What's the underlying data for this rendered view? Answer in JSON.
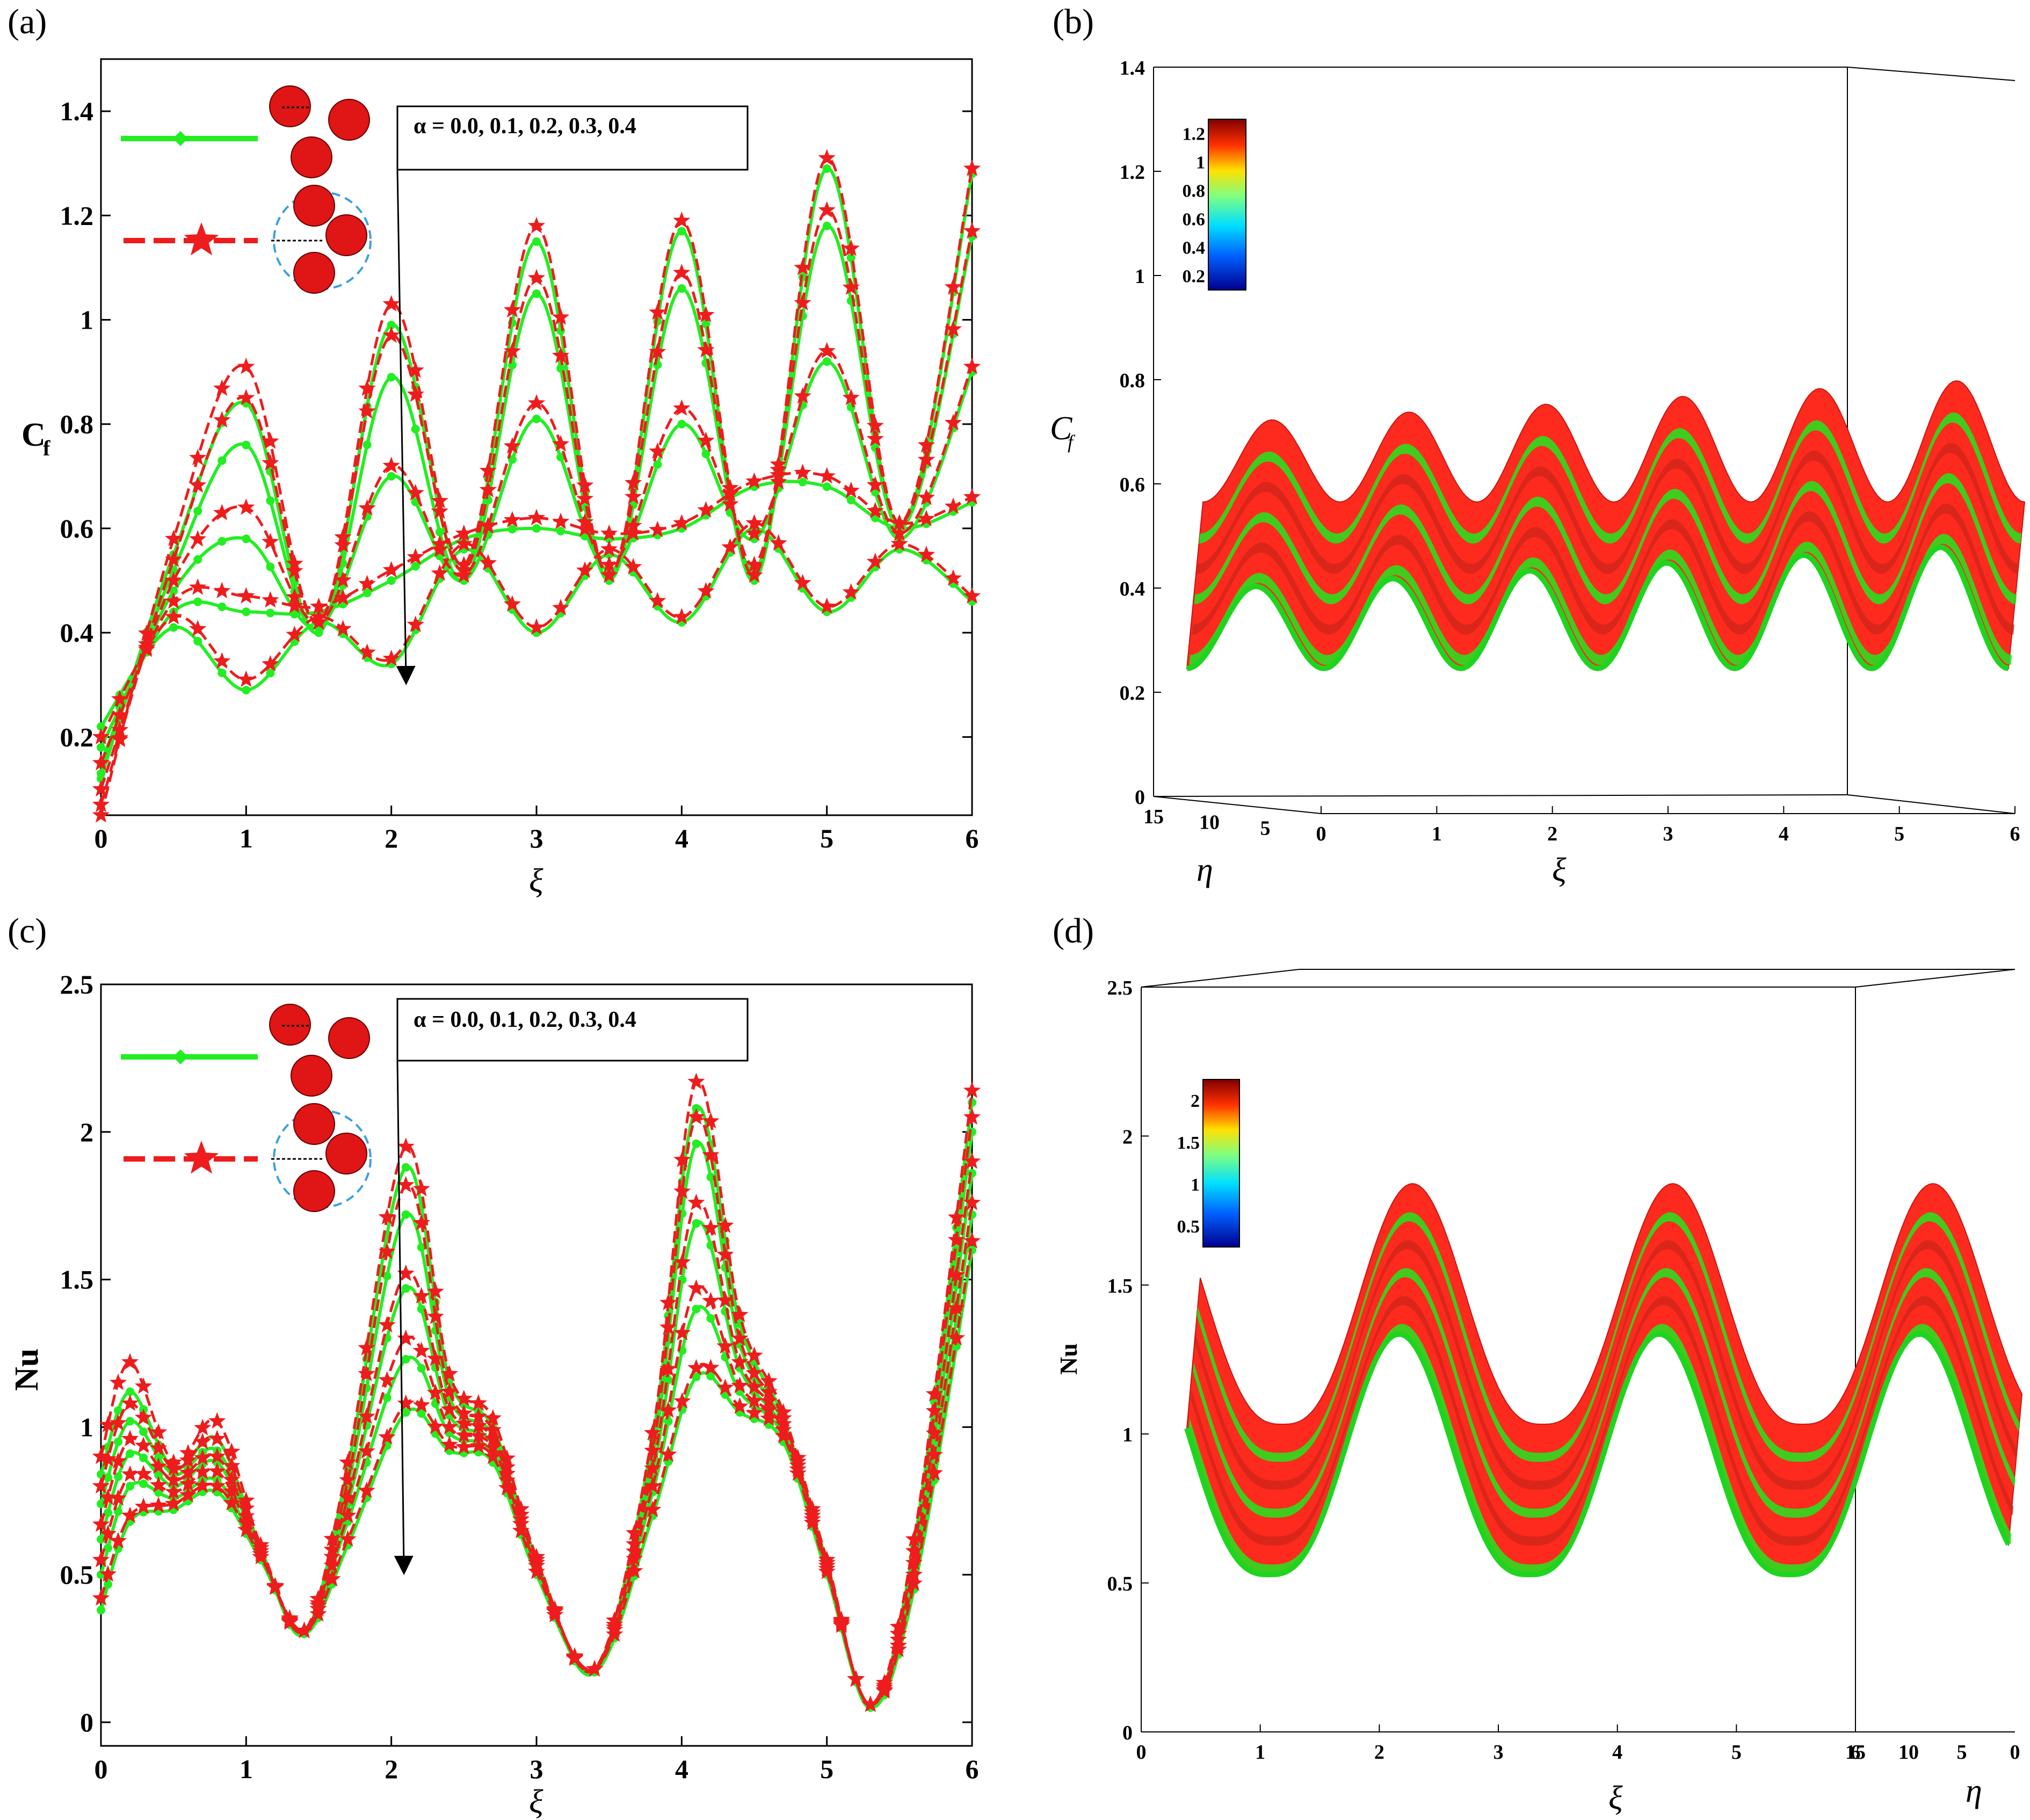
{
  "panels": [
    {
      "id": "a",
      "tag": "(a)",
      "ylabel": "C",
      "ylabel_sub": "f",
      "xlabel": "ξ",
      "annotation": "α = 0.0, 0.1, 0.2, 0.3, 0.4"
    },
    {
      "id": "b",
      "tag": "(b)",
      "ylabel": "C",
      "ylabel_sub": "f",
      "xlabel": "ξ",
      "depthlabel": "η",
      "colorbar": {
        "ticks": [
          "1.2",
          "1",
          "0.8",
          "0.6",
          "0.4",
          "0.2"
        ]
      }
    },
    {
      "id": "c",
      "tag": "(c)",
      "ylabel": "Nu",
      "xlabel": "ξ",
      "annotation": "α = 0.0, 0.1, 0.2, 0.3, 0.4"
    },
    {
      "id": "d",
      "tag": "(d)",
      "ylabel": "Nu",
      "xlabel": "ξ",
      "depthlabel": "η",
      "colorbar": {
        "ticks": [
          "2",
          "1.5",
          "1",
          "0.5"
        ]
      }
    }
  ],
  "colors": {
    "series_green": "#22ee22",
    "series_red": "#ee1c1c",
    "particle": "#e01515",
    "circle_outline": "#3aa0e0"
  },
  "chart_data": [
    {
      "type": "line",
      "panel": "a",
      "xlabel": "ξ",
      "ylabel": "Cf",
      "xlim": [
        0,
        6
      ],
      "ylim": [
        0.05,
        1.5
      ],
      "xticks": [
        0,
        1,
        2,
        3,
        4,
        5,
        6
      ],
      "yticks": [
        0.2,
        0.4,
        0.6,
        0.8,
        1,
        1.2,
        1.4
      ],
      "x": [
        0,
        0.5,
        1,
        1.5,
        2,
        2.5,
        3,
        3.5,
        4,
        4.5,
        5,
        5.5,
        6
      ],
      "series": [
        {
          "group": "green",
          "alpha": 0.0,
          "values": [
            0.12,
            0.55,
            0.84,
            0.4,
            0.99,
            0.52,
            1.15,
            0.5,
            1.17,
            0.5,
            1.29,
            0.6,
            1.28
          ]
        },
        {
          "group": "green",
          "alpha": 0.1,
          "values": [
            0.13,
            0.52,
            0.76,
            0.4,
            0.89,
            0.5,
            1.05,
            0.5,
            1.06,
            0.52,
            1.18,
            0.6,
            1.16
          ]
        },
        {
          "group": "green",
          "alpha": 0.2,
          "values": [
            0.15,
            0.48,
            0.58,
            0.41,
            0.7,
            0.5,
            0.81,
            0.52,
            0.8,
            0.58,
            0.92,
            0.58,
            0.9
          ]
        },
        {
          "group": "green",
          "alpha": 0.3,
          "values": [
            0.18,
            0.44,
            0.44,
            0.44,
            0.5,
            0.58,
            0.6,
            0.58,
            0.6,
            0.68,
            0.68,
            0.6,
            0.65
          ]
        },
        {
          "group": "green",
          "alpha": 0.4,
          "values": [
            0.22,
            0.41,
            0.29,
            0.42,
            0.34,
            0.56,
            0.4,
            0.55,
            0.42,
            0.6,
            0.44,
            0.56,
            0.46
          ]
        },
        {
          "group": "red",
          "alpha": 0.0,
          "values": [
            0.05,
            0.58,
            0.91,
            0.42,
            1.03,
            0.53,
            1.18,
            0.51,
            1.19,
            0.51,
            1.31,
            0.61,
            1.29
          ]
        },
        {
          "group": "red",
          "alpha": 0.1,
          "values": [
            0.07,
            0.54,
            0.85,
            0.42,
            0.97,
            0.52,
            1.08,
            0.51,
            1.09,
            0.53,
            1.21,
            0.61,
            1.17
          ]
        },
        {
          "group": "red",
          "alpha": 0.2,
          "values": [
            0.1,
            0.5,
            0.64,
            0.42,
            0.72,
            0.51,
            0.84,
            0.53,
            0.83,
            0.59,
            0.94,
            0.59,
            0.91
          ]
        },
        {
          "group": "red",
          "alpha": 0.3,
          "values": [
            0.15,
            0.46,
            0.47,
            0.45,
            0.52,
            0.59,
            0.62,
            0.59,
            0.61,
            0.69,
            0.7,
            0.61,
            0.66
          ]
        },
        {
          "group": "red",
          "alpha": 0.4,
          "values": [
            0.2,
            0.43,
            0.31,
            0.43,
            0.35,
            0.57,
            0.41,
            0.56,
            0.43,
            0.61,
            0.45,
            0.57,
            0.47
          ]
        }
      ]
    },
    {
      "type": "surface",
      "panel": "b",
      "xlabel": "ξ",
      "ylabel": "Cf",
      "zlabel": "η",
      "xlim": [
        0,
        6
      ],
      "ylim": [
        0,
        1.4
      ],
      "zlim": [
        0,
        15
      ],
      "xticks": [
        0,
        1,
        2,
        3,
        4,
        5,
        6
      ],
      "yticks": [
        0,
        0.2,
        0.4,
        0.6,
        0.8,
        1,
        1.2,
        1.4
      ],
      "zticks": [
        0,
        5,
        10,
        15
      ]
    },
    {
      "type": "line",
      "panel": "c",
      "xlabel": "ξ",
      "ylabel": "Nu",
      "xlim": [
        0,
        6
      ],
      "ylim": [
        -0.08,
        2.5
      ],
      "xticks": [
        0,
        1,
        2,
        3,
        4,
        5,
        6
      ],
      "yticks": [
        0,
        0.5,
        1,
        1.5,
        2,
        2.5
      ],
      "x": [
        0,
        0.2,
        0.5,
        0.8,
        1.1,
        1.4,
        1.7,
        2.1,
        2.4,
        2.7,
        3.0,
        3.4,
        3.8,
        4.1,
        4.4,
        4.7,
        5.0,
        5.3,
        5.6,
        6.0
      ],
      "series": [
        {
          "group": "green",
          "alpha": 0.0,
          "values": [
            0.38,
            0.68,
            0.72,
            0.78,
            0.55,
            0.3,
            0.6,
            1.05,
            0.92,
            0.88,
            0.5,
            0.17,
            0.7,
            1.17,
            1.05,
            0.95,
            0.5,
            0.05,
            0.45,
            1.6
          ]
        },
        {
          "group": "green",
          "alpha": 0.1,
          "values": [
            0.5,
            0.8,
            0.76,
            0.82,
            0.56,
            0.3,
            0.68,
            1.23,
            0.98,
            0.91,
            0.52,
            0.17,
            0.78,
            1.4,
            1.12,
            0.97,
            0.51,
            0.05,
            0.48,
            1.72
          ]
        },
        {
          "group": "green",
          "alpha": 0.2,
          "values": [
            0.62,
            0.91,
            0.8,
            0.88,
            0.57,
            0.3,
            0.74,
            1.47,
            1.04,
            0.94,
            0.53,
            0.17,
            0.84,
            1.69,
            1.2,
            0.99,
            0.52,
            0.05,
            0.52,
            1.86
          ]
        },
        {
          "group": "green",
          "alpha": 0.3,
          "values": [
            0.74,
            1.02,
            0.84,
            0.92,
            0.58,
            0.3,
            0.8,
            1.72,
            1.1,
            0.97,
            0.54,
            0.17,
            0.9,
            1.96,
            1.28,
            1.01,
            0.53,
            0.05,
            0.56,
            2.0
          ]
        },
        {
          "group": "green",
          "alpha": 0.4,
          "values": [
            0.84,
            1.12,
            0.86,
            0.96,
            0.59,
            0.3,
            0.86,
            1.88,
            1.16,
            1.0,
            0.55,
            0.17,
            0.96,
            2.08,
            1.35,
            1.03,
            0.54,
            0.05,
            0.6,
            2.1
          ]
        },
        {
          "group": "red",
          "alpha": 0.0,
          "values": [
            0.42,
            0.7,
            0.74,
            0.8,
            0.56,
            0.31,
            0.62,
            1.08,
            0.94,
            0.9,
            0.51,
            0.18,
            0.72,
            1.2,
            1.07,
            0.97,
            0.51,
            0.06,
            0.47,
            1.63
          ]
        },
        {
          "group": "red",
          "alpha": 0.1,
          "values": [
            0.55,
            0.84,
            0.78,
            0.85,
            0.57,
            0.31,
            0.7,
            1.3,
            1.0,
            0.93,
            0.53,
            0.18,
            0.8,
            1.47,
            1.14,
            0.99,
            0.52,
            0.06,
            0.5,
            1.76
          ]
        },
        {
          "group": "red",
          "alpha": 0.2,
          "values": [
            0.67,
            0.96,
            0.82,
            0.9,
            0.58,
            0.31,
            0.76,
            1.52,
            1.06,
            0.96,
            0.54,
            0.18,
            0.86,
            1.76,
            1.22,
            1.01,
            0.53,
            0.06,
            0.54,
            1.9
          ]
        },
        {
          "group": "red",
          "alpha": 0.3,
          "values": [
            0.8,
            1.08,
            0.86,
            0.96,
            0.59,
            0.31,
            0.82,
            1.82,
            1.12,
            0.99,
            0.55,
            0.18,
            0.92,
            2.05,
            1.3,
            1.03,
            0.54,
            0.06,
            0.58,
            2.05
          ]
        },
        {
          "group": "red",
          "alpha": 0.4,
          "values": [
            0.9,
            1.22,
            0.88,
            1.02,
            0.6,
            0.31,
            0.88,
            1.95,
            1.18,
            1.03,
            0.56,
            0.18,
            0.98,
            2.17,
            1.38,
            1.05,
            0.55,
            0.06,
            0.62,
            2.14
          ]
        }
      ]
    },
    {
      "type": "surface",
      "panel": "d",
      "xlabel": "ξ",
      "ylabel": "Nu",
      "zlabel": "η",
      "xlim": [
        0,
        6
      ],
      "ylim": [
        0,
        2.5
      ],
      "zlim": [
        0,
        15
      ],
      "xticks": [
        0,
        1,
        2,
        3,
        4,
        5,
        6
      ],
      "yticks": [
        0,
        0.5,
        1,
        1.5,
        2,
        2.5
      ],
      "zticks": [
        0,
        5,
        10,
        15
      ]
    }
  ]
}
